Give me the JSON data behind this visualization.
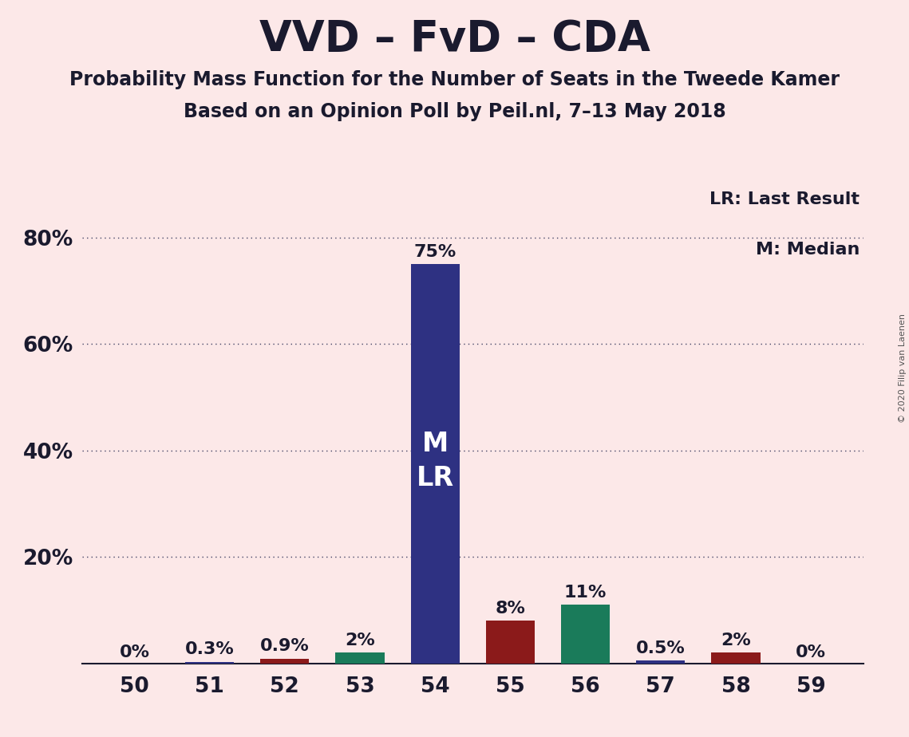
{
  "title": "VVD – FvD – CDA",
  "subtitle1": "Probability Mass Function for the Number of Seats in the Tweede Kamer",
  "subtitle2": "Based on an Opinion Poll by Peil.nl, 7–13 May 2018",
  "copyright": "© 2020 Filip van Laenen",
  "seats": [
    50,
    51,
    52,
    53,
    54,
    55,
    56,
    57,
    58,
    59
  ],
  "values": [
    0.0,
    0.3,
    0.9,
    2.0,
    75.0,
    8.0,
    11.0,
    0.5,
    2.0,
    0.0
  ],
  "labels": [
    "0%",
    "0.3%",
    "0.9%",
    "2%",
    "75%",
    "8%",
    "11%",
    "0.5%",
    "2%",
    "0%"
  ],
  "background_color": "#fce8e8",
  "bar_width": 0.65,
  "ylim": [
    0,
    90
  ],
  "yticks": [
    20,
    40,
    60,
    80
  ],
  "ytick_labels": [
    "20%",
    "40%",
    "60%",
    "80%"
  ],
  "legend_lr": "LR: Last Result",
  "legend_m": "M: Median",
  "title_fontsize": 38,
  "subtitle_fontsize": 17,
  "label_fontsize": 16,
  "axis_fontsize": 19,
  "navy_color": "#2e3182",
  "darkred_color": "#8b1a1a",
  "teal_color": "#1a7b5a",
  "text_color": "#1a1a2e",
  "grid_color": "#444466",
  "copyright_color": "#555555"
}
